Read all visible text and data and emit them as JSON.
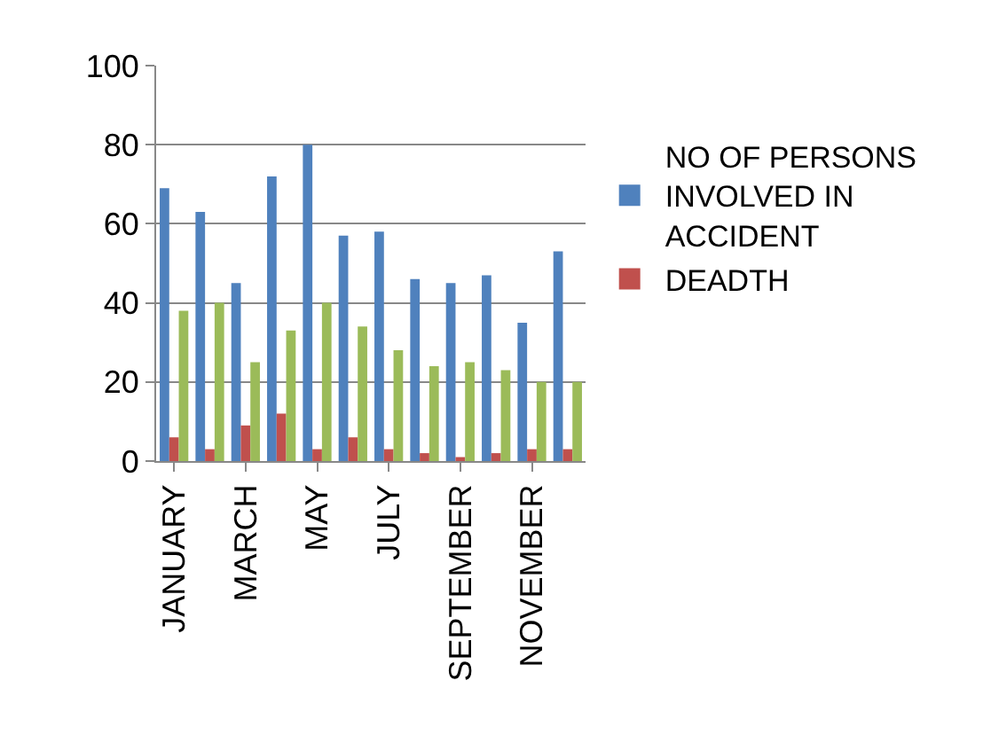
{
  "chart_data": {
    "type": "bar",
    "categories": [
      "JANUARY",
      null,
      "MARCH",
      null,
      "MAY",
      null,
      "JULY",
      null,
      "SEPTEMBER",
      null,
      "NOVEMBER",
      null
    ],
    "series": [
      {
        "name": "NO OF PERSONS INVOLVED IN ACCIDENT",
        "color": "#4f81bd",
        "values": [
          69,
          63,
          45,
          72,
          80,
          57,
          58,
          46,
          45,
          47,
          35,
          53
        ]
      },
      {
        "name": "DEADTH",
        "color": "#c0504d",
        "values": [
          6,
          3,
          9,
          12,
          3,
          6,
          3,
          2,
          1,
          2,
          3,
          3
        ]
      },
      {
        "color": "#9bbb59",
        "values": [
          38,
          40,
          25,
          33,
          40,
          34,
          28,
          24,
          25,
          23,
          20,
          20
        ]
      }
    ],
    "ylim": [
      0,
      100
    ],
    "yticks": [
      0,
      20,
      40,
      60,
      80,
      100
    ],
    "grid": "y",
    "legend": "right"
  }
}
